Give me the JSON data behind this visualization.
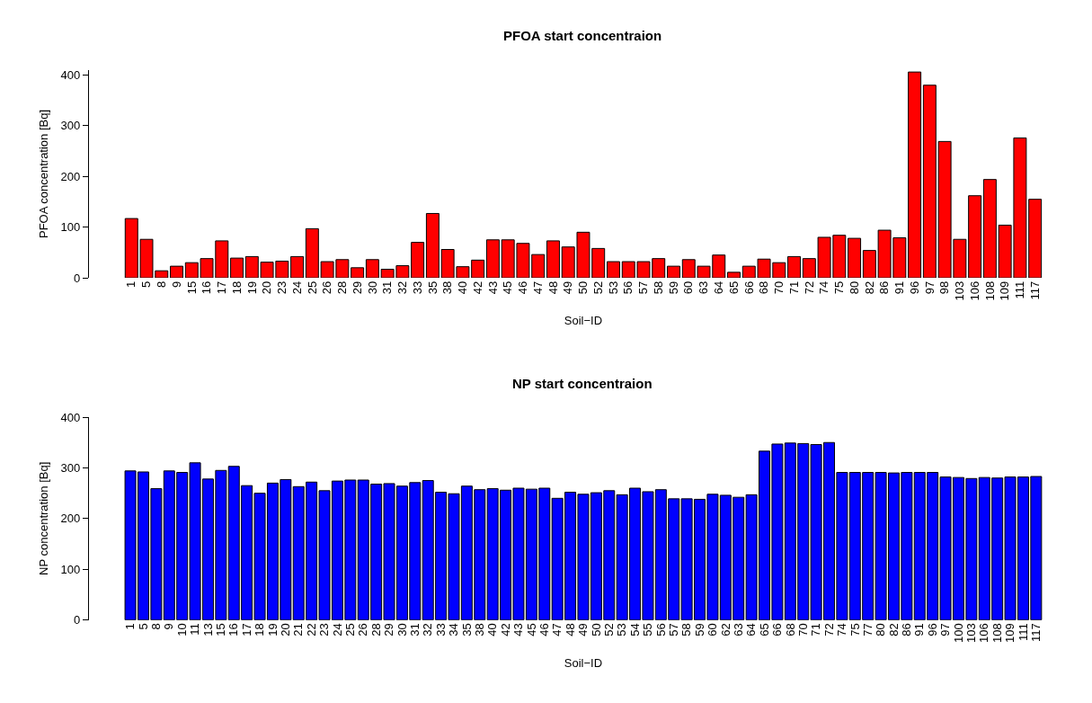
{
  "chart_data": [
    {
      "type": "bar",
      "title": "PFOA start concentraion",
      "xlabel": "Soil−ID",
      "ylabel": "PFOA concentration [Bq]",
      "categories": [
        "1",
        "5",
        "8",
        "9",
        "15",
        "16",
        "17",
        "18",
        "19",
        "20",
        "23",
        "24",
        "25",
        "26",
        "28",
        "29",
        "30",
        "31",
        "32",
        "33",
        "35",
        "38",
        "40",
        "42",
        "43",
        "45",
        "46",
        "47",
        "48",
        "49",
        "50",
        "52",
        "53",
        "56",
        "57",
        "58",
        "59",
        "60",
        "63",
        "64",
        "65",
        "66",
        "68",
        "70",
        "71",
        "72",
        "74",
        "75",
        "80",
        "82",
        "86",
        "91",
        "96",
        "97",
        "98",
        "103",
        "106",
        "108",
        "109",
        "111",
        "117"
      ],
      "values": [
        117,
        76,
        14,
        23,
        30,
        38,
        73,
        39,
        42,
        31,
        33,
        42,
        97,
        32,
        36,
        20,
        36,
        17,
        24,
        70,
        127,
        56,
        22,
        35,
        75,
        75,
        68,
        46,
        73,
        61,
        90,
        58,
        32,
        32,
        32,
        38,
        23,
        36,
        23,
        45,
        11,
        23,
        37,
        30,
        42,
        38,
        80,
        84,
        78,
        54,
        94,
        79,
        406,
        380,
        269,
        76,
        162,
        194,
        104,
        276,
        155
      ],
      "color": "#ff0000",
      "ylim": [
        0,
        410
      ],
      "yticks": [
        0,
        100,
        200,
        300,
        400
      ]
    },
    {
      "type": "bar",
      "title": "NP start concentraion",
      "xlabel": "Soil−ID",
      "ylabel": "NP concentration [Bq]",
      "categories": [
        "1",
        "5",
        "8",
        "9",
        "10",
        "11",
        "13",
        "15",
        "16",
        "17",
        "18",
        "19",
        "20",
        "21",
        "22",
        "23",
        "24",
        "25",
        "26",
        "28",
        "29",
        "30",
        "31",
        "32",
        "33",
        "34",
        "35",
        "38",
        "40",
        "42",
        "43",
        "45",
        "46",
        "47",
        "48",
        "49",
        "50",
        "52",
        "53",
        "54",
        "55",
        "56",
        "57",
        "58",
        "59",
        "60",
        "62",
        "63",
        "64",
        "65",
        "66",
        "68",
        "70",
        "71",
        "72",
        "74",
        "75",
        "77",
        "80",
        "82",
        "86",
        "91",
        "96",
        "97",
        "100",
        "103",
        "106",
        "108",
        "109",
        "111",
        "117"
      ],
      "values": [
        294,
        292,
        259,
        294,
        291,
        310,
        278,
        295,
        303,
        265,
        250,
        270,
        277,
        263,
        272,
        255,
        274,
        276,
        276,
        268,
        269,
        264,
        271,
        275,
        252,
        249,
        264,
        257,
        259,
        256,
        260,
        258,
        260,
        240,
        252,
        248,
        251,
        255,
        247,
        260,
        253,
        257,
        239,
        239,
        238,
        248,
        246,
        242,
        247,
        333,
        347,
        349,
        348,
        346,
        350,
        291,
        291,
        291,
        291,
        290,
        291,
        291,
        291,
        282,
        281,
        279,
        281,
        280,
        282,
        282,
        283
      ],
      "color": "#0000ff",
      "ylim": [
        0,
        400
      ],
      "yticks": [
        0,
        100,
        200,
        300,
        400
      ]
    }
  ]
}
